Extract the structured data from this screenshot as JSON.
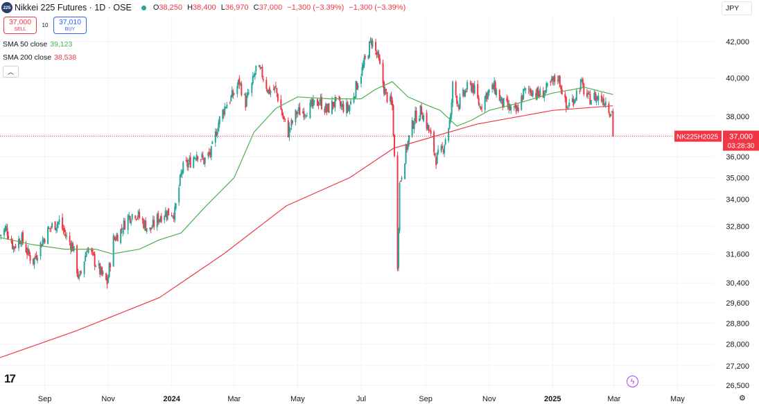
{
  "header": {
    "symbol_badge": "225",
    "title": "Nikkei 225 Futures · 1D · OSE",
    "ohlc": [
      {
        "label": "O",
        "value": "38,250"
      },
      {
        "label": "H",
        "value": "38,400"
      },
      {
        "label": "L",
        "value": "36,970"
      },
      {
        "label": "C",
        "value": "37,000"
      },
      {
        "label": "",
        "value": "−1,300 (−3.39%)"
      },
      {
        "label": "",
        "value": "−1,300 (−3.39%)"
      }
    ]
  },
  "trade": {
    "sell_price": "37,000",
    "sell_label": "SELL",
    "spread": "10",
    "buy_price": "37,010",
    "buy_label": "BUY"
  },
  "indicators": [
    {
      "name": "SMA 50 close",
      "value": "39,123"
    },
    {
      "name": "SMA 200 close",
      "value": "38,538"
    }
  ],
  "currency": "JPY",
  "price_tag": {
    "symbol": "NK225H2025",
    "price": "37,000",
    "countdown": "03:28:30"
  },
  "colors": {
    "up": "#26a69a",
    "down": "#f23645",
    "sma50": "#4caf50",
    "sma200": "#f23645",
    "accent": "#2962ff"
  },
  "icons": {
    "collapse": "chevron-up-icon",
    "logo": "tradingview-logo-icon",
    "flash": "lightning-icon",
    "settings": "gear-icon",
    "currency": "chevron-down-icon"
  },
  "chart_data": {
    "type": "candlestick",
    "title": "Nikkei 225 Futures · 1D · OSE",
    "y_scale": "log",
    "ylim": [
      26200,
      43000
    ],
    "y_ticks": [
      "42,000",
      "40,000",
      "38,000",
      "36,000",
      "35,000",
      "34,000",
      "32,800",
      "31,600",
      "30,400",
      "29,600",
      "28,800",
      "28,000",
      "27,200",
      "26,500"
    ],
    "x_ticks": [
      "Sep",
      "Nov",
      "2024",
      "Mar",
      "May",
      "Jul",
      "Sep",
      "Nov",
      "2025",
      "Mar",
      "May"
    ],
    "x_tick_dates": [
      "2023-09-01",
      "2023-11-01",
      "2024-01-01",
      "2024-03-01",
      "2024-05-01",
      "2024-07-01",
      "2024-09-01",
      "2024-11-01",
      "2025-01-01",
      "2025-03-01",
      "2025-05-01"
    ],
    "xlim": [
      "2023-07-20",
      "2025-06-05"
    ],
    "last_price": 37000,
    "price_path": [
      [
        "2023-07-20",
        32400
      ],
      [
        "2023-07-26",
        32700
      ],
      [
        "2023-08-02",
        31900
      ],
      [
        "2023-08-09",
        32300
      ],
      [
        "2023-08-16",
        31600
      ],
      [
        "2023-08-21",
        31300
      ],
      [
        "2023-08-28",
        32000
      ],
      [
        "2023-09-04",
        32600
      ],
      [
        "2023-09-08",
        32800
      ],
      [
        "2023-09-15",
        33000
      ],
      [
        "2023-09-22",
        32300
      ],
      [
        "2023-09-28",
        31900
      ],
      [
        "2023-10-04",
        30500
      ],
      [
        "2023-10-12",
        31900
      ],
      [
        "2023-10-19",
        31300
      ],
      [
        "2023-10-26",
        30700
      ],
      [
        "2023-10-31",
        30400
      ],
      [
        "2023-11-06",
        32200
      ],
      [
        "2023-11-13",
        32600
      ],
      [
        "2023-11-20",
        33200
      ],
      [
        "2023-11-27",
        33400
      ],
      [
        "2023-12-04",
        33000
      ],
      [
        "2023-12-11",
        32600
      ],
      [
        "2023-12-18",
        33100
      ],
      [
        "2023-12-25",
        33400
      ],
      [
        "2024-01-04",
        33400
      ],
      [
        "2024-01-11",
        35400
      ],
      [
        "2024-01-18",
        35700
      ],
      [
        "2024-01-25",
        36200
      ],
      [
        "2024-02-01",
        35800
      ],
      [
        "2024-02-08",
        36200
      ],
      [
        "2024-02-15",
        37700
      ],
      [
        "2024-02-22",
        38600
      ],
      [
        "2024-02-29",
        39100
      ],
      [
        "2024-03-06",
        39800
      ],
      [
        "2024-03-12",
        38700
      ],
      [
        "2024-03-18",
        39600
      ],
      [
        "2024-03-22",
        40500
      ],
      [
        "2024-03-28",
        40200
      ],
      [
        "2024-04-03",
        39300
      ],
      [
        "2024-04-10",
        39400
      ],
      [
        "2024-04-17",
        37900
      ],
      [
        "2024-04-22",
        37200
      ],
      [
        "2024-04-30",
        38200
      ],
      [
        "2024-05-08",
        38300
      ],
      [
        "2024-05-15",
        38500
      ],
      [
        "2024-05-22",
        38800
      ],
      [
        "2024-05-29",
        38300
      ],
      [
        "2024-06-05",
        38700
      ],
      [
        "2024-06-12",
        38500
      ],
      [
        "2024-06-19",
        38400
      ],
      [
        "2024-06-26",
        39500
      ],
      [
        "2024-07-03",
        40600
      ],
      [
        "2024-07-11",
        42100
      ],
      [
        "2024-07-17",
        41100
      ],
      [
        "2024-07-24",
        39200
      ],
      [
        "2024-07-31",
        38500
      ],
      [
        "2024-08-02",
        35900
      ],
      [
        "2024-08-05",
        31200
      ],
      [
        "2024-08-07",
        34700
      ],
      [
        "2024-08-14",
        36500
      ],
      [
        "2024-08-21",
        37900
      ],
      [
        "2024-08-28",
        38300
      ],
      [
        "2024-09-04",
        37300
      ],
      [
        "2024-09-11",
        35900
      ],
      [
        "2024-09-17",
        36300
      ],
      [
        "2024-09-25",
        37900
      ],
      [
        "2024-09-27",
        39600
      ],
      [
        "2024-10-03",
        38600
      ],
      [
        "2024-10-10",
        39400
      ],
      [
        "2024-10-16",
        39600
      ],
      [
        "2024-10-23",
        38500
      ],
      [
        "2024-10-30",
        39200
      ],
      [
        "2024-11-06",
        39500
      ],
      [
        "2024-11-13",
        38700
      ],
      [
        "2024-11-20",
        38400
      ],
      [
        "2024-11-27",
        38200
      ],
      [
        "2024-12-04",
        39200
      ],
      [
        "2024-12-11",
        39400
      ],
      [
        "2024-12-18",
        39100
      ],
      [
        "2024-12-25",
        39300
      ],
      [
        "2025-01-06",
        40100
      ],
      [
        "2025-01-10",
        39400
      ],
      [
        "2025-01-14",
        38400
      ],
      [
        "2025-01-21",
        38900
      ],
      [
        "2025-01-28",
        39700
      ],
      [
        "2025-02-04",
        38900
      ],
      [
        "2025-02-11",
        39000
      ],
      [
        "2025-02-18",
        38900
      ],
      [
        "2025-02-21",
        38800
      ],
      [
        "2025-02-25",
        38300
      ],
      [
        "2025-02-27",
        38250
      ],
      [
        "2025-02-28",
        37000
      ]
    ],
    "sma50": [
      [
        "2023-07-20",
        32300
      ],
      [
        "2023-08-20",
        32000
      ],
      [
        "2023-09-20",
        31800
      ],
      [
        "2023-10-20",
        31800
      ],
      [
        "2023-11-05",
        31600
      ],
      [
        "2023-12-01",
        31800
      ],
      [
        "2023-12-20",
        32200
      ],
      [
        "2024-01-10",
        32500
      ],
      [
        "2024-02-01",
        33600
      ],
      [
        "2024-03-01",
        35000
      ],
      [
        "2024-03-20",
        37200
      ],
      [
        "2024-04-10",
        38400
      ],
      [
        "2024-05-01",
        39000
      ],
      [
        "2024-06-01",
        38900
      ],
      [
        "2024-07-01",
        38900
      ],
      [
        "2024-07-15",
        39400
      ],
      [
        "2024-07-31",
        39800
      ],
      [
        "2024-08-15",
        39000
      ],
      [
        "2024-09-01",
        38600
      ],
      [
        "2024-09-15",
        38300
      ],
      [
        "2024-10-01",
        37500
      ],
      [
        "2024-10-15",
        37800
      ],
      [
        "2024-11-01",
        38300
      ],
      [
        "2024-12-01",
        38700
      ],
      [
        "2025-01-01",
        39200
      ],
      [
        "2025-02-01",
        39500
      ],
      [
        "2025-02-28",
        39123
      ]
    ],
    "sma200": [
      [
        "2023-07-20",
        27500
      ],
      [
        "2023-10-01",
        28500
      ],
      [
        "2023-12-20",
        29800
      ],
      [
        "2024-02-20",
        31600
      ],
      [
        "2024-04-20",
        33700
      ],
      [
        "2024-06-20",
        35000
      ],
      [
        "2024-08-01",
        36400
      ],
      [
        "2024-09-10",
        37000
      ],
      [
        "2024-10-20",
        37600
      ],
      [
        "2024-12-01",
        38000
      ],
      [
        "2025-01-01",
        38300
      ],
      [
        "2025-02-28",
        38538
      ]
    ]
  }
}
